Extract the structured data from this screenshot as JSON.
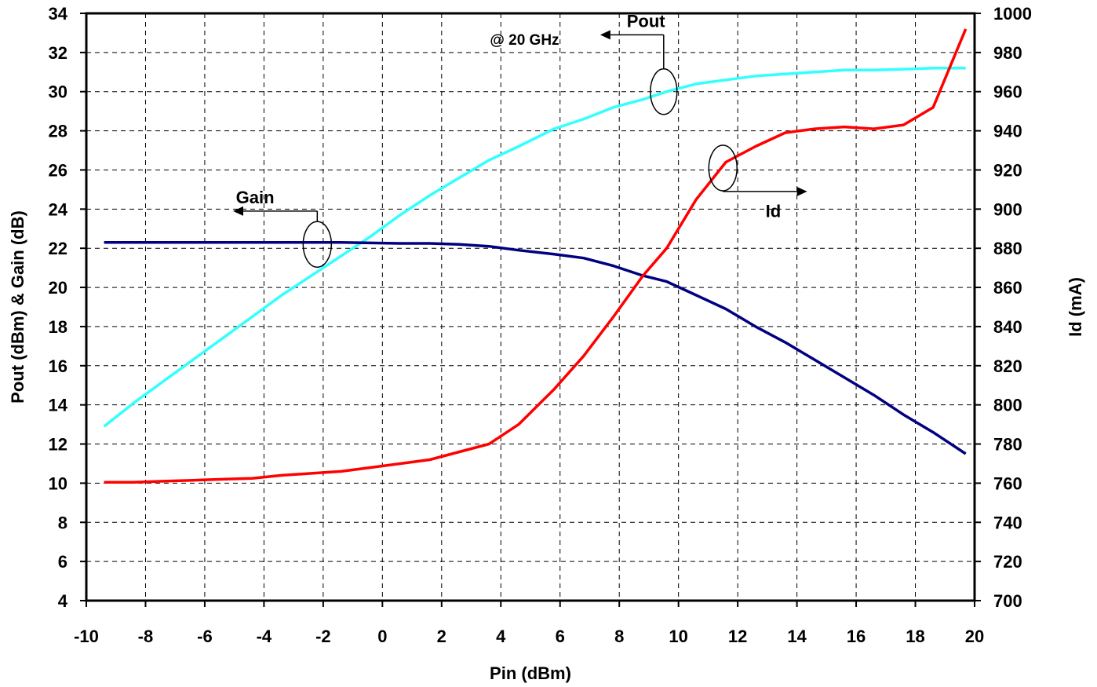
{
  "chart_data": {
    "type": "line",
    "title": "",
    "annotation": "@ 20 GHz",
    "xlabel": "Pin (dBm)",
    "ylabel_left": "Pout (dBm) & Gain (dB)",
    "ylabel_right": "Id (mA)",
    "xlim": [
      -10,
      20
    ],
    "ylim_left": [
      4,
      34
    ],
    "ylim_right": [
      700,
      1000
    ],
    "x_ticks": [
      "-10",
      "-8",
      "-6",
      "-4",
      "-2",
      "0",
      "2",
      "4",
      "6",
      "8",
      "10",
      "12",
      "14",
      "16",
      "18",
      "20"
    ],
    "y_left_ticks": [
      "4",
      "6",
      "8",
      "10",
      "12",
      "14",
      "16",
      "18",
      "20",
      "22",
      "24",
      "26",
      "28",
      "30",
      "32",
      "34"
    ],
    "y_right_ticks": [
      "700",
      "720",
      "740",
      "760",
      "780",
      "800",
      "820",
      "840",
      "860",
      "880",
      "900",
      "920",
      "940",
      "960",
      "980",
      "1000"
    ],
    "grid": true,
    "series": [
      {
        "name": "Pout",
        "axis": "left",
        "color": "#33ffff",
        "x": [
          -9.4,
          -8.4,
          -7.4,
          -6.4,
          -5.4,
          -4.4,
          -3.4,
          -2.4,
          -1.4,
          -0.4,
          0.6,
          1.6,
          2.6,
          3.6,
          4.6,
          5.8,
          6.8,
          7.8,
          8.8,
          9.6,
          10.6,
          11.6,
          12.6,
          13.6,
          14.6,
          15.6,
          16.6,
          17.6,
          18.6,
          19.7
        ],
        "y": [
          12.9,
          14.1,
          15.2,
          16.3,
          17.4,
          18.5,
          19.6,
          20.6,
          21.6,
          22.6,
          23.7,
          24.7,
          25.6,
          26.5,
          27.2,
          28.1,
          28.6,
          29.2,
          29.6,
          30.0,
          30.4,
          30.6,
          30.8,
          30.9,
          31.0,
          31.1,
          31.1,
          31.15,
          31.2,
          31.2
        ]
      },
      {
        "name": "Gain",
        "axis": "left",
        "color": "#000080",
        "x": [
          -9.4,
          -7.4,
          -5.4,
          -3.4,
          -1.4,
          0.6,
          1.6,
          2.6,
          3.6,
          4.6,
          5.8,
          6.8,
          7.8,
          8.8,
          9.6,
          10.6,
          11.6,
          12.6,
          13.6,
          14.6,
          15.6,
          16.6,
          17.6,
          18.6,
          19.7
        ],
        "y": [
          22.3,
          22.3,
          22.3,
          22.3,
          22.3,
          22.25,
          22.25,
          22.2,
          22.1,
          21.9,
          21.7,
          21.5,
          21.1,
          20.6,
          20.3,
          19.6,
          18.9,
          18.0,
          17.2,
          16.3,
          15.4,
          14.5,
          13.5,
          12.6,
          11.5
        ]
      },
      {
        "name": "Id",
        "axis": "right",
        "color": "#ff0000",
        "x": [
          -9.4,
          -8.4,
          -7.4,
          -6.4,
          -5.4,
          -4.4,
          -3.4,
          -2.4,
          -1.4,
          -0.4,
          0.6,
          1.6,
          2.6,
          3.6,
          4.6,
          5.8,
          6.8,
          7.8,
          8.8,
          9.6,
          10.6,
          11.6,
          12.6,
          13.6,
          14.6,
          15.6,
          16.6,
          17.6,
          18.6,
          19.7
        ],
        "y": [
          760.5,
          760.5,
          761,
          761.5,
          762,
          762.5,
          764,
          765,
          766,
          768,
          770,
          772,
          776,
          780,
          790,
          808,
          825,
          845,
          866,
          880,
          905,
          924,
          932,
          939,
          941,
          942,
          941,
          943,
          952,
          992
        ]
      }
    ],
    "labels": [
      {
        "text": "Pout",
        "x": 9.0,
        "y": 31.4,
        "side": "left"
      },
      {
        "text": "Gain",
        "x": -2.5,
        "y": 22.2,
        "side": "left"
      },
      {
        "text": "Id",
        "x": 11.6,
        "y": 26.2,
        "side": "right"
      }
    ]
  }
}
